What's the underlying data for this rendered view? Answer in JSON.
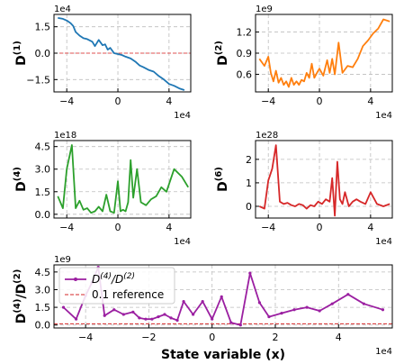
{
  "chart_data": [
    {
      "type": "line",
      "ylabel": "D",
      "ylabel_sup": "(1)",
      "x_multiplier": "1e4",
      "y_multiplier": "1e4",
      "xlim": [
        -5.0,
        5.7
      ],
      "ylim": [
        -2.2,
        2.2
      ],
      "xticks": [
        -4,
        0,
        4
      ],
      "yticks": [
        -1.5,
        0.0,
        1.5
      ],
      "ytick_labels": [
        "−1.5",
        "0.0",
        "1.5"
      ],
      "reference_y": 0,
      "color": "#1f77b4",
      "x": [
        -4.7,
        -4.3,
        -4.0,
        -3.7,
        -3.5,
        -3.3,
        -3.0,
        -2.7,
        -2.4,
        -2.0,
        -1.8,
        -1.5,
        -1.2,
        -1.0,
        -0.8,
        -0.6,
        -0.3,
        0.0,
        0.3,
        0.6,
        1.0,
        1.4,
        1.7,
        2.0,
        2.4,
        2.8,
        3.2,
        3.6,
        4.0,
        4.4,
        4.8,
        5.2
      ],
      "y": [
        2.0,
        1.95,
        1.85,
        1.7,
        1.55,
        1.2,
        1.0,
        0.85,
        0.8,
        0.65,
        0.4,
        0.75,
        0.45,
        0.5,
        0.2,
        0.3,
        0.0,
        -0.05,
        -0.1,
        -0.2,
        -0.3,
        -0.5,
        -0.7,
        -0.8,
        -0.95,
        -1.05,
        -1.3,
        -1.5,
        -1.75,
        -1.85,
        -2.0,
        -2.1
      ]
    },
    {
      "type": "line",
      "ylabel": "D",
      "ylabel_sup": "(2)",
      "x_multiplier": "1e4",
      "y_multiplier": "1e9",
      "xlim": [
        -5.0,
        5.7
      ],
      "ylim": [
        0.35,
        1.45
      ],
      "xticks": [
        -4,
        0,
        4
      ],
      "yticks": [
        0.6,
        0.9,
        1.2
      ],
      "ytick_labels": [
        "0.6",
        "0.9",
        "1.2"
      ],
      "color": "#ff7f0e",
      "x": [
        -4.7,
        -4.3,
        -4.0,
        -3.8,
        -3.6,
        -3.4,
        -3.2,
        -3.0,
        -2.8,
        -2.6,
        -2.4,
        -2.2,
        -2.0,
        -1.8,
        -1.6,
        -1.4,
        -1.2,
        -1.0,
        -0.8,
        -0.6,
        -0.4,
        -0.2,
        0.0,
        0.3,
        0.6,
        0.8,
        1.0,
        1.2,
        1.5,
        1.8,
        2.2,
        2.6,
        3.0,
        3.4,
        3.8,
        4.2,
        4.6,
        5.0,
        5.5
      ],
      "y": [
        0.82,
        0.72,
        0.85,
        0.62,
        0.5,
        0.65,
        0.48,
        0.55,
        0.45,
        0.5,
        0.42,
        0.55,
        0.45,
        0.5,
        0.45,
        0.52,
        0.5,
        0.62,
        0.55,
        0.75,
        0.55,
        0.62,
        0.68,
        0.58,
        0.8,
        0.62,
        0.82,
        0.6,
        1.05,
        0.62,
        0.72,
        0.7,
        0.82,
        1.0,
        1.08,
        1.18,
        1.25,
        1.38,
        1.35
      ]
    },
    {
      "type": "line",
      "ylabel": "D",
      "ylabel_sup": "(4)",
      "x_multiplier": "1e4",
      "y_multiplier": "1e18",
      "xlim": [
        -5.0,
        5.7
      ],
      "ylim": [
        -0.25,
        4.9
      ],
      "xticks": [
        -4,
        0,
        4
      ],
      "yticks": [
        0.0,
        1.5,
        3.0,
        4.5
      ],
      "ytick_labels": [
        "0.0",
        "1.5",
        "3.0",
        "4.5"
      ],
      "color": "#2ca02c",
      "x": [
        -4.7,
        -4.3,
        -4.0,
        -3.6,
        -3.3,
        -3.0,
        -2.7,
        -2.4,
        -2.1,
        -1.8,
        -1.5,
        -1.2,
        -0.9,
        -0.6,
        -0.3,
        0.0,
        0.2,
        0.4,
        0.6,
        0.8,
        1.0,
        1.2,
        1.5,
        1.8,
        2.2,
        2.6,
        3.0,
        3.4,
        3.8,
        4.4,
        5.0,
        5.5
      ],
      "y": [
        1.2,
        0.4,
        3.0,
        4.6,
        0.4,
        0.9,
        0.3,
        0.4,
        0.1,
        0.2,
        0.5,
        0.2,
        1.3,
        0.2,
        0.1,
        2.2,
        0.2,
        0.3,
        0.2,
        0.8,
        3.6,
        1.1,
        3.0,
        0.8,
        0.6,
        1.0,
        1.2,
        1.8,
        1.5,
        3.0,
        2.5,
        1.8
      ]
    },
    {
      "type": "line",
      "ylabel": "D",
      "ylabel_sup": "(6)",
      "x_multiplier": "1e4",
      "y_multiplier": "1e28",
      "xlim": [
        -5.0,
        5.7
      ],
      "ylim": [
        -0.5,
        2.8
      ],
      "xticks": [
        -4,
        0,
        4
      ],
      "yticks": [
        0,
        1,
        2
      ],
      "ytick_labels": [
        "0",
        "1",
        "2"
      ],
      "color": "#d62728",
      "x": [
        -4.7,
        -4.3,
        -4.0,
        -3.7,
        -3.4,
        -3.1,
        -2.8,
        -2.5,
        -2.2,
        -1.9,
        -1.6,
        -1.3,
        -1.0,
        -0.7,
        -0.4,
        -0.1,
        0.2,
        0.5,
        0.8,
        1.0,
        1.2,
        1.4,
        1.6,
        1.8,
        2.0,
        2.3,
        2.6,
        2.9,
        3.2,
        3.6,
        4.0,
        4.5,
        5.0,
        5.5
      ],
      "y": [
        0.0,
        -0.1,
        1.1,
        1.6,
        2.6,
        0.2,
        0.1,
        0.15,
        0.05,
        0.0,
        0.1,
        0.05,
        -0.1,
        0.05,
        0.0,
        0.2,
        0.1,
        0.3,
        0.2,
        1.2,
        -0.4,
        1.9,
        0.3,
        0.1,
        0.6,
        0.0,
        0.2,
        0.3,
        0.2,
        0.1,
        0.6,
        0.1,
        0.0,
        0.1
      ]
    },
    {
      "type": "line",
      "ylabel": "D",
      "ylabel_sup": "(4)",
      "ylabel_div": "/D",
      "ylabel_div_sup": "(2)",
      "xlabel": "State variable (x)",
      "x_multiplier": "1e4",
      "y_multiplier": "1e9",
      "xlim": [
        -5.0,
        5.7
      ],
      "ylim": [
        -0.25,
        5.1
      ],
      "xticks": [
        -4,
        -2,
        0,
        2,
        4
      ],
      "xtick_labels": [
        "−4",
        "−2",
        "0",
        "2",
        "4"
      ],
      "yticks": [
        0.0,
        1.5,
        3.0,
        4.5
      ],
      "ytick_labels": [
        "0.0",
        "1.5",
        "3.0",
        "4.5"
      ],
      "color": "#9b1fa1",
      "reference_y": 0.1,
      "reference_color": "#d62728",
      "legend": {
        "entries": [
          "D^(4)/D^(2)",
          "0.1 reference"
        ],
        "placement": "top-left"
      },
      "x": [
        -4.7,
        -4.3,
        -4.0,
        -3.8,
        -3.6,
        -3.4,
        -3.1,
        -2.8,
        -2.5,
        -2.3,
        -2.1,
        -1.9,
        -1.7,
        -1.5,
        -1.3,
        -1.1,
        -0.9,
        -0.6,
        -0.3,
        0.0,
        0.3,
        0.6,
        0.9,
        1.2,
        1.5,
        1.8,
        2.2,
        2.6,
        3.0,
        3.4,
        3.8,
        4.3,
        4.8,
        5.4
      ],
      "y": [
        1.5,
        0.5,
        2.5,
        3.6,
        4.9,
        0.8,
        1.3,
        0.9,
        1.1,
        0.6,
        0.5,
        0.5,
        0.7,
        0.9,
        0.6,
        0.4,
        2.0,
        0.9,
        2.0,
        0.5,
        2.4,
        0.2,
        0.0,
        4.4,
        1.9,
        0.7,
        1.0,
        1.3,
        1.5,
        1.2,
        1.8,
        2.6,
        1.8,
        1.3
      ]
    }
  ]
}
